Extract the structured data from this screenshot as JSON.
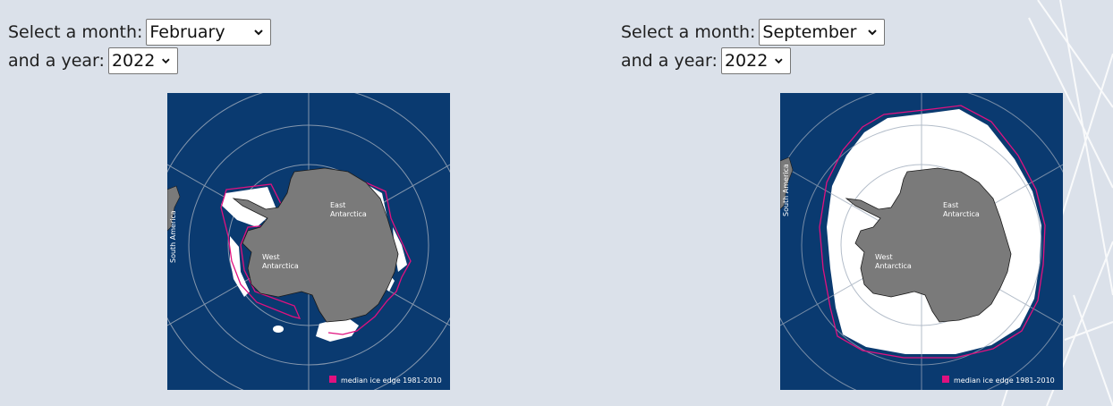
{
  "selectors": [
    {
      "month_label": "Select a month:",
      "month_value": "February",
      "year_label": "and a year:",
      "year_value": "2022"
    },
    {
      "month_label": "Select a month:",
      "month_value": "September",
      "year_label": "and a year:",
      "year_value": "2022"
    }
  ],
  "maps": [
    {
      "label_east": [
        "East",
        "Antarctica"
      ],
      "label_west": [
        "West",
        "Antarctica"
      ],
      "label_sa": "South America",
      "legend": "median ice edge 1981-2010"
    },
    {
      "label_east": [
        "East",
        "Antarctica"
      ],
      "label_west": [
        "West",
        "Antarctica"
      ],
      "label_sa": "South America",
      "legend": "median ice edge 1981-2010"
    }
  ],
  "colors": {
    "ocean": "#0a3a70",
    "land": "#7a7a7a",
    "ice": "#ffffff",
    "median_edge": "#e0117f",
    "background": "#dbe1ea"
  }
}
